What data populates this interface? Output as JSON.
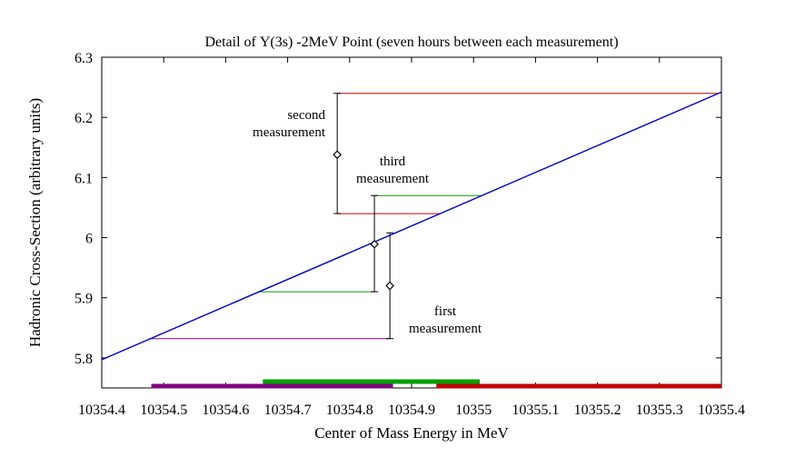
{
  "chart_data": {
    "type": "line",
    "title": "Detail of Υ(3s) -2MeV Point (seven hours between each measurement)",
    "xlabel": "Center of Mass Energy in MeV",
    "ylabel": "Hadronic Cross-Section (arbitrary units)",
    "xlim": [
      10354.4,
      10355.4
    ],
    "ylim": [
      5.75,
      6.3
    ],
    "x_ticks": [
      "10354.4",
      "10354.5",
      "10354.6",
      "10354.7",
      "10354.8",
      "10354.9",
      "10355",
      "10355.1",
      "10355.2",
      "10355.3",
      "10355.4"
    ],
    "y_ticks": [
      "5.8",
      "5.9",
      "6",
      "6.1",
      "6.2",
      "6.3"
    ],
    "grid": false,
    "fit_line": {
      "color": "#0000cc",
      "x": [
        10354.4,
        10355.4
      ],
      "y": [
        5.797,
        6.242
      ]
    },
    "measurements": [
      {
        "label": "first measurement",
        "x": 10354.865,
        "y": 5.92,
        "y_err": [
          5.832,
          6.008
        ],
        "color": "#800080",
        "energy_band": [
          10354.48,
          10354.87
        ],
        "projection_y": 5.832
      },
      {
        "label": "second measurement",
        "x": 10354.78,
        "y": 6.138,
        "y_err": [
          6.04,
          6.24
        ],
        "color": "#c00000",
        "energy_band": [
          10354.94,
          10355.4
        ],
        "projection_y": [
          6.04,
          6.24
        ]
      },
      {
        "label": "third measurement",
        "x": 10354.84,
        "y": 5.989,
        "y_err": [
          5.91,
          6.07
        ],
        "color": "#00a000",
        "energy_band": [
          10354.66,
          10355.01
        ],
        "projection_y": [
          5.91,
          6.07
        ]
      }
    ]
  }
}
